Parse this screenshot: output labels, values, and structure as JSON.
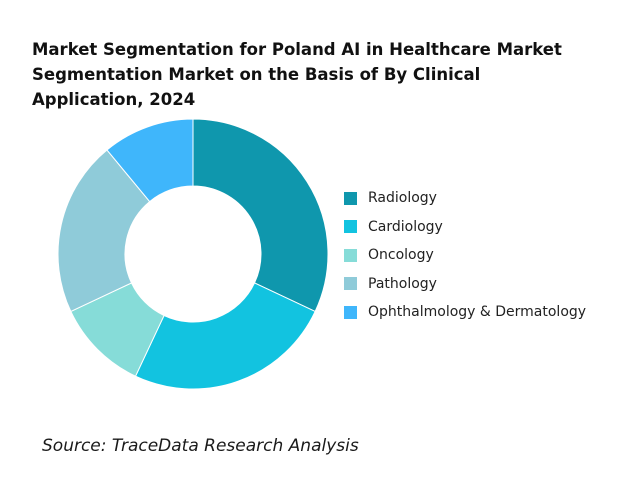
{
  "chart_data": {
    "type": "donut",
    "title_lines": [
      "Market Segmentation for Poland AI in Healthcare Market",
      "Segmentation Market on the Basis of By Clinical",
      "Application, 2024"
    ],
    "categories": [
      "Radiology",
      "Cardiology",
      "Oncology",
      "Pathology",
      "Ophthalmology & Dermatology"
    ],
    "values": [
      32,
      25,
      11,
      21,
      11
    ],
    "colors": [
      "#0f97ad",
      "#12c3e0",
      "#86dcd8",
      "#8fcbd9",
      "#3fb6fb"
    ],
    "legend_position": "right",
    "source": "Source: TraceData Research Analysis"
  }
}
